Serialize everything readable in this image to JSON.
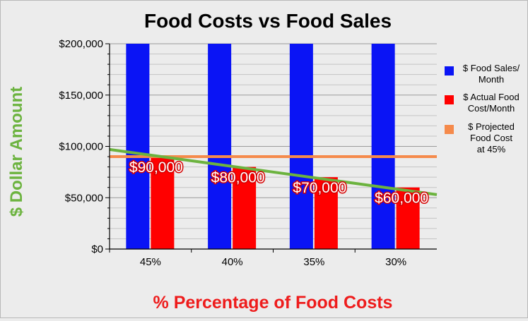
{
  "chart_data": {
    "type": "bar",
    "title": "Food Costs vs Food Sales",
    "xlabel": "% Percentage of Food Costs",
    "ylabel": "$ Dollar Amount",
    "categories": [
      "45%",
      "40%",
      "35%",
      "30%"
    ],
    "ylim": [
      0,
      200000
    ],
    "yticks": [
      0,
      50000,
      100000,
      150000,
      200000
    ],
    "ytick_labels": [
      "$0",
      "$50,000",
      "$100,000",
      "$150,000",
      "$200,000"
    ],
    "grid": true,
    "legend_position": "right",
    "series": [
      {
        "name": "$ Food Sales/ Month",
        "name_lines": [
          "$ Food Sales/",
          "Month"
        ],
        "type": "bar",
        "color": "#0a14f5",
        "values": [
          200000,
          200000,
          200000,
          200000
        ]
      },
      {
        "name": "$ Actual Food Cost/Month",
        "name_lines": [
          "$ Actual Food",
          "Cost/Month"
        ],
        "type": "bar",
        "color": "#ff0000",
        "values": [
          90000,
          80000,
          70000,
          60000
        ],
        "data_labels": [
          "$90,000",
          "$80,000",
          "$70,000",
          "$60,000"
        ]
      },
      {
        "name": "$ Projected Food Cost at 45%",
        "name_lines": [
          "$ Projected",
          "Food Cost",
          "at 45%"
        ],
        "type": "line",
        "color": "#f58a4b",
        "values": [
          90000,
          90000,
          90000,
          90000
        ]
      }
    ],
    "trendline": {
      "color": "#6cb33f",
      "start_value": 97000,
      "end_value": 53000
    }
  }
}
